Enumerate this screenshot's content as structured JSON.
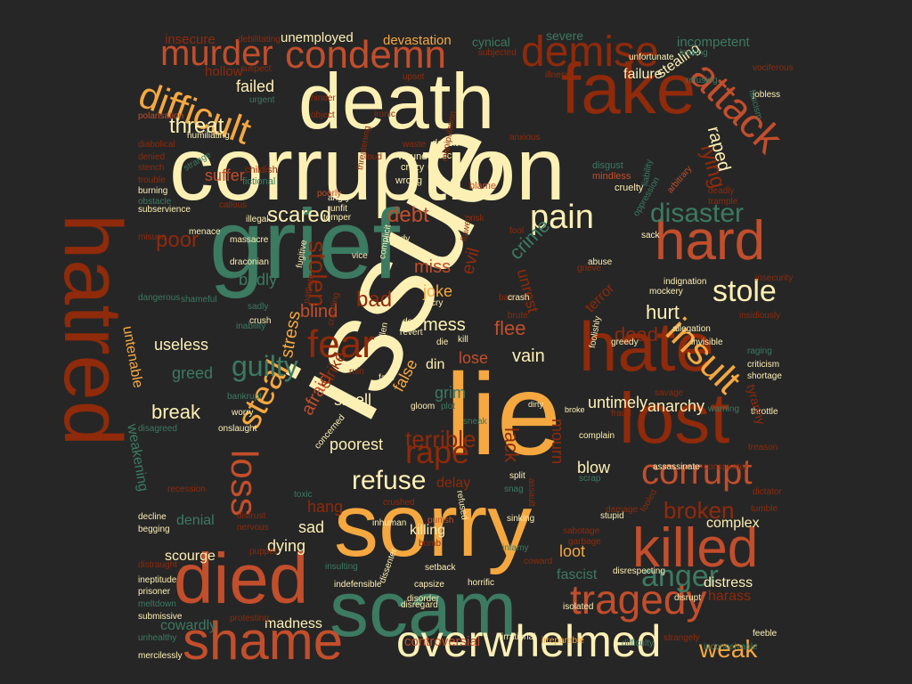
{
  "colors": {
    "background": "#262626",
    "page": "#ffffff",
    "cream": "#fdf0b5",
    "orange": "#f5a840",
    "rust": "#c24e2c",
    "brown": "#8f2a0b",
    "green": "#3c7a62"
  },
  "words": [
    {
      "text": "issue",
      "color": "cream"
    },
    {
      "text": "corruption",
      "color": "cream"
    },
    {
      "text": "death",
      "color": "cream"
    },
    {
      "text": "sorry",
      "color": "orange"
    },
    {
      "text": "lie",
      "color": "orange"
    },
    {
      "text": "grief",
      "color": "green"
    },
    {
      "text": "hatred",
      "color": "brown"
    },
    {
      "text": "scam",
      "color": "green"
    },
    {
      "text": "fake",
      "color": "brown"
    },
    {
      "text": "hate",
      "color": "brown"
    },
    {
      "text": "lost",
      "color": "brown"
    },
    {
      "text": "died",
      "color": "rust"
    },
    {
      "text": "shame",
      "color": "rust"
    },
    {
      "text": "killed",
      "color": "rust"
    },
    {
      "text": "overwhelmed",
      "color": "cream"
    },
    {
      "text": "tragedy",
      "color": "rust"
    },
    {
      "text": "hard",
      "color": "rust"
    },
    {
      "text": "condemn",
      "color": "rust"
    },
    {
      "text": "demise",
      "color": "brown"
    },
    {
      "text": "murder",
      "color": "rust"
    },
    {
      "text": "difficult",
      "color": "orange"
    },
    {
      "text": "attack",
      "color": "rust"
    },
    {
      "text": "insult",
      "color": "orange"
    },
    {
      "text": "corrupt",
      "color": "rust"
    },
    {
      "text": "steal",
      "color": "orange"
    },
    {
      "text": "loss",
      "color": "rust"
    },
    {
      "text": "rape",
      "color": "brown"
    },
    {
      "text": "fear",
      "color": "brown"
    },
    {
      "text": "pain",
      "color": "cream"
    },
    {
      "text": "anger",
      "color": "green"
    },
    {
      "text": "disaster",
      "color": "green"
    },
    {
      "text": "stole",
      "color": "cream"
    },
    {
      "text": "refuse",
      "color": "cream"
    },
    {
      "text": "guilty",
      "color": "green"
    },
    {
      "text": "weak",
      "color": "orange"
    },
    {
      "text": "terrible",
      "color": "brown"
    },
    {
      "text": "broken",
      "color": "brown"
    },
    {
      "text": "stolen",
      "color": "brown"
    },
    {
      "text": "threat",
      "color": "cream"
    },
    {
      "text": "lying",
      "color": "brown"
    },
    {
      "text": "raped",
      "color": "cream"
    },
    {
      "text": "scared",
      "color": "cream"
    },
    {
      "text": "debt",
      "color": "rust"
    },
    {
      "text": "poor",
      "color": "brown"
    },
    {
      "text": "bad",
      "color": "brown"
    },
    {
      "text": "crime",
      "color": "green"
    },
    {
      "text": "evil",
      "color": "brown"
    },
    {
      "text": "unrest",
      "color": "brown"
    },
    {
      "text": "hurt",
      "color": "cream"
    },
    {
      "text": "dead",
      "color": "brown"
    },
    {
      "text": "flee",
      "color": "rust"
    },
    {
      "text": "vain",
      "color": "cream"
    },
    {
      "text": "mess",
      "color": "cream"
    },
    {
      "text": "joke",
      "color": "orange"
    },
    {
      "text": "miss",
      "color": "rust"
    },
    {
      "text": "blind",
      "color": "rust"
    },
    {
      "text": "stress",
      "color": "orange"
    },
    {
      "text": "greed",
      "color": "green"
    },
    {
      "text": "useless",
      "color": "cream"
    },
    {
      "text": "break",
      "color": "cream"
    },
    {
      "text": "afraid",
      "color": "rust"
    },
    {
      "text": "strike",
      "color": "brown"
    },
    {
      "text": "smell",
      "color": "cream"
    },
    {
      "text": "false",
      "color": "orange"
    },
    {
      "text": "grim",
      "color": "green"
    },
    {
      "text": "lose",
      "color": "rust"
    },
    {
      "text": "din",
      "color": "cream"
    },
    {
      "text": "poorest",
      "color": "cream"
    },
    {
      "text": "mourn",
      "color": "brown"
    },
    {
      "text": "lack",
      "color": "brown"
    },
    {
      "text": "untimely",
      "color": "cream"
    },
    {
      "text": "anarchy",
      "color": "cream"
    },
    {
      "text": "blow",
      "color": "cream"
    },
    {
      "text": "loot",
      "color": "orange"
    },
    {
      "text": "fascist",
      "color": "green"
    },
    {
      "text": "complex",
      "color": "cream"
    },
    {
      "text": "distress",
      "color": "cream"
    },
    {
      "text": "harass",
      "color": "brown"
    },
    {
      "text": "hang",
      "color": "brown"
    },
    {
      "text": "sad",
      "color": "cream"
    },
    {
      "text": "delay",
      "color": "brown"
    },
    {
      "text": "killing",
      "color": "cream"
    },
    {
      "text": "dying",
      "color": "cream"
    },
    {
      "text": "denial",
      "color": "green"
    },
    {
      "text": "scourge",
      "color": "cream"
    },
    {
      "text": "cowardly",
      "color": "green"
    },
    {
      "text": "madness",
      "color": "cream"
    },
    {
      "text": "controversial",
      "color": "rust"
    },
    {
      "text": "weakening",
      "color": "green"
    },
    {
      "text": "untenable",
      "color": "orange"
    },
    {
      "text": "failed",
      "color": "cream"
    },
    {
      "text": "failure",
      "color": "cream"
    },
    {
      "text": "stealing",
      "color": "cream"
    },
    {
      "text": "severe",
      "color": "green"
    },
    {
      "text": "cynical",
      "color": "green"
    },
    {
      "text": "devastation",
      "color": "orange"
    },
    {
      "text": "unemployed",
      "color": "cream"
    },
    {
      "text": "insecure",
      "color": "brown"
    },
    {
      "text": "incompetent",
      "color": "green"
    },
    {
      "text": "hollow",
      "color": "brown"
    },
    {
      "text": "suffer",
      "color": "rust"
    },
    {
      "text": "badly",
      "color": "green"
    },
    {
      "text": "terror",
      "color": "brown"
    },
    {
      "text": "cruelty",
      "color": "cream"
    },
    {
      "text": "wrong",
      "color": "cream"
    },
    {
      "text": "crazy",
      "color": "cream"
    },
    {
      "text": "panic",
      "color": "cream"
    },
    {
      "text": "deceit",
      "color": "cream"
    },
    {
      "text": "wound",
      "color": "cream"
    },
    {
      "text": "blame",
      "color": "rust"
    },
    {
      "text": "disgust",
      "color": "green"
    },
    {
      "text": "mindless",
      "color": "rust"
    },
    {
      "text": "arbitrary",
      "color": "rust"
    },
    {
      "text": "childish",
      "color": "brown"
    },
    {
      "text": "fictional",
      "color": "green"
    },
    {
      "text": "angry",
      "color": "cream"
    },
    {
      "text": "poorly",
      "color": "rust"
    },
    {
      "text": "illegal",
      "color": "cream"
    },
    {
      "text": "unfit",
      "color": "cream"
    },
    {
      "text": "temper",
      "color": "cream"
    },
    {
      "text": "needy",
      "color": "cream"
    },
    {
      "text": "risk",
      "color": "brown"
    },
    {
      "text": "sack",
      "color": "cream"
    },
    {
      "text": "abuse",
      "color": "cream"
    },
    {
      "text": "grieve",
      "color": "brown"
    },
    {
      "text": "indignation",
      "color": "cream"
    },
    {
      "text": "mockery",
      "color": "cream"
    },
    {
      "text": "allegation",
      "color": "cream"
    },
    {
      "text": "invisible",
      "color": "cream"
    },
    {
      "text": "criticism",
      "color": "cream"
    },
    {
      "text": "shortage",
      "color": "cream"
    },
    {
      "text": "greedy",
      "color": "cream"
    },
    {
      "text": "fraud",
      "color": "brown"
    },
    {
      "text": "broke",
      "color": "cream"
    },
    {
      "text": "dirty",
      "color": "cream"
    },
    {
      "text": "complain",
      "color": "cream"
    },
    {
      "text": "throttle",
      "color": "cream"
    },
    {
      "text": "treason",
      "color": "brown"
    },
    {
      "text": "assassinate",
      "color": "cream"
    },
    {
      "text": "dictator",
      "color": "brown"
    },
    {
      "text": "tumble",
      "color": "brown"
    },
    {
      "text": "stupid",
      "color": "cream"
    },
    {
      "text": "fooled",
      "color": "brown"
    },
    {
      "text": "disrespecting",
      "color": "cream"
    },
    {
      "text": "disrupt",
      "color": "cream"
    },
    {
      "text": "isolated",
      "color": "cream"
    },
    {
      "text": "horrific",
      "color": "cream"
    },
    {
      "text": "irrational",
      "color": "cream"
    },
    {
      "text": "irreparable",
      "color": "orange"
    },
    {
      "text": "difficulty",
      "color": "green"
    },
    {
      "text": "strangely",
      "color": "brown"
    },
    {
      "text": "feeble",
      "color": "cream"
    },
    {
      "text": "inconceivable",
      "color": "green"
    },
    {
      "text": "disregard",
      "color": "cream"
    },
    {
      "text": "setback",
      "color": "cream"
    },
    {
      "text": "capsize",
      "color": "cream"
    },
    {
      "text": "inhuman",
      "color": "cream"
    },
    {
      "text": "insulting",
      "color": "green"
    },
    {
      "text": "indefensible",
      "color": "cream"
    },
    {
      "text": "distraught",
      "color": "brown"
    },
    {
      "text": "prisoner",
      "color": "cream"
    },
    {
      "text": "ineptitude",
      "color": "cream"
    },
    {
      "text": "meltdown",
      "color": "green"
    },
    {
      "text": "submissive",
      "color": "cream"
    },
    {
      "text": "unhealthy",
      "color": "green"
    },
    {
      "text": "mercilessly",
      "color": "cream"
    },
    {
      "text": "begging",
      "color": "cream"
    },
    {
      "text": "decline",
      "color": "cream"
    },
    {
      "text": "recession",
      "color": "brown"
    },
    {
      "text": "distrust",
      "color": "brown"
    },
    {
      "text": "nervous",
      "color": "brown"
    },
    {
      "text": "toxic",
      "color": "green"
    },
    {
      "text": "punish",
      "color": "rust"
    },
    {
      "text": "bomb",
      "color": "brown"
    },
    {
      "text": "sinking",
      "color": "cream"
    },
    {
      "text": "damage",
      "color": "brown"
    },
    {
      "text": "garbage",
      "color": "brown"
    },
    {
      "text": "sabotage",
      "color": "brown"
    },
    {
      "text": "coward",
      "color": "brown"
    },
    {
      "text": "infamy",
      "color": "green"
    },
    {
      "text": "scrap",
      "color": "green"
    },
    {
      "text": "assault",
      "color": "brown"
    },
    {
      "text": "snag",
      "color": "green"
    },
    {
      "text": "split",
      "color": "cream"
    },
    {
      "text": "gloom",
      "color": "cream"
    },
    {
      "text": "plot",
      "color": "green"
    },
    {
      "text": "sneak",
      "color": "green"
    },
    {
      "text": "worry",
      "color": "cream"
    },
    {
      "text": "onslaught",
      "color": "cream"
    },
    {
      "text": "bankrupt",
      "color": "green"
    },
    {
      "text": "fails",
      "color": "cream"
    },
    {
      "text": "disagreed",
      "color": "green"
    },
    {
      "text": "inability",
      "color": "green"
    },
    {
      "text": "sadly",
      "color": "green"
    },
    {
      "text": "crush",
      "color": "cream"
    },
    {
      "text": "shameful",
      "color": "green"
    },
    {
      "text": "dangerous",
      "color": "green"
    },
    {
      "text": "draconian",
      "color": "cream"
    },
    {
      "text": "menace",
      "color": "cream"
    },
    {
      "text": "misuse",
      "color": "brown"
    },
    {
      "text": "massacre",
      "color": "cream"
    },
    {
      "text": "subservience",
      "color": "cream"
    },
    {
      "text": "burning",
      "color": "cream"
    },
    {
      "text": "obstacle",
      "color": "green"
    },
    {
      "text": "trouble",
      "color": "brown"
    },
    {
      "text": "stench",
      "color": "brown"
    },
    {
      "text": "denied",
      "color": "brown"
    },
    {
      "text": "diabolical",
      "color": "brown"
    },
    {
      "text": "humiliating",
      "color": "cream"
    },
    {
      "text": "polarisation",
      "color": "rust"
    },
    {
      "text": "hinder",
      "color": "brown"
    },
    {
      "text": "object",
      "color": "brown"
    },
    {
      "text": "urgent",
      "color": "green"
    },
    {
      "text": "suspect",
      "color": "brown"
    },
    {
      "text": "debilitating",
      "color": "brown"
    },
    {
      "text": "upset",
      "color": "brown"
    },
    {
      "text": "subjected",
      "color": "brown"
    },
    {
      "text": "illness",
      "color": "brown"
    },
    {
      "text": "unfortunate",
      "color": "cream"
    },
    {
      "text": "leaking",
      "color": "green"
    },
    {
      "text": "refusing",
      "color": "green"
    },
    {
      "text": "vociferous",
      "color": "brown"
    },
    {
      "text": "jobless",
      "color": "cream"
    },
    {
      "text": "fascism",
      "color": "green"
    },
    {
      "text": "waste",
      "color": "brown"
    },
    {
      "text": "loud",
      "color": "brown"
    },
    {
      "text": "ironic",
      "color": "brown"
    },
    {
      "text": "deadly",
      "color": "brown"
    },
    {
      "text": "trample",
      "color": "brown"
    },
    {
      "text": "threatening",
      "color": "brown"
    },
    {
      "text": "manipulation",
      "color": "brown"
    },
    {
      "text": "oppression",
      "color": "green"
    },
    {
      "text": "liability",
      "color": "green"
    },
    {
      "text": "flawed",
      "color": "brown"
    },
    {
      "text": "fool",
      "color": "brown"
    },
    {
      "text": "insecurity",
      "color": "brown"
    },
    {
      "text": "insidiously",
      "color": "brown"
    },
    {
      "text": "raging",
      "color": "green"
    },
    {
      "text": "tyranny",
      "color": "brown"
    },
    {
      "text": "vice",
      "color": "cream"
    },
    {
      "text": "complicit",
      "color": "cream"
    },
    {
      "text": "fugitive",
      "color": "cream"
    },
    {
      "text": "pathetic",
      "color": "brown"
    },
    {
      "text": "crashing",
      "color": "brown"
    },
    {
      "text": "deny",
      "color": "cream"
    },
    {
      "text": "cry",
      "color": "cream"
    },
    {
      "text": "revert",
      "color": "cream"
    },
    {
      "text": "die",
      "color": "cream"
    },
    {
      "text": "kill",
      "color": "cream"
    },
    {
      "text": "bait",
      "color": "brown"
    },
    {
      "text": "brute",
      "color": "brown"
    },
    {
      "text": "crash",
      "color": "cream"
    },
    {
      "text": "foolishly",
      "color": "cream"
    },
    {
      "text": "savage",
      "color": "brown"
    },
    {
      "text": "warning",
      "color": "green"
    },
    {
      "text": "ruin",
      "color": "brown"
    },
    {
      "text": "fallen",
      "color": "cream"
    },
    {
      "text": "concerned",
      "color": "cream"
    },
    {
      "text": "callous",
      "color": "brown"
    },
    {
      "text": "strange",
      "color": "green"
    },
    {
      "text": "anxious",
      "color": "brown"
    },
    {
      "text": "conspirator",
      "color": "brown"
    },
    {
      "text": "protesting",
      "color": "brown"
    },
    {
      "text": "puppet",
      "color": "brown"
    },
    {
      "text": "dissenter",
      "color": "cream"
    },
    {
      "text": "disorder",
      "color": "cream"
    },
    {
      "text": "crushed",
      "color": "brown"
    },
    {
      "text": "refused",
      "color": "cream"
    }
  ]
}
